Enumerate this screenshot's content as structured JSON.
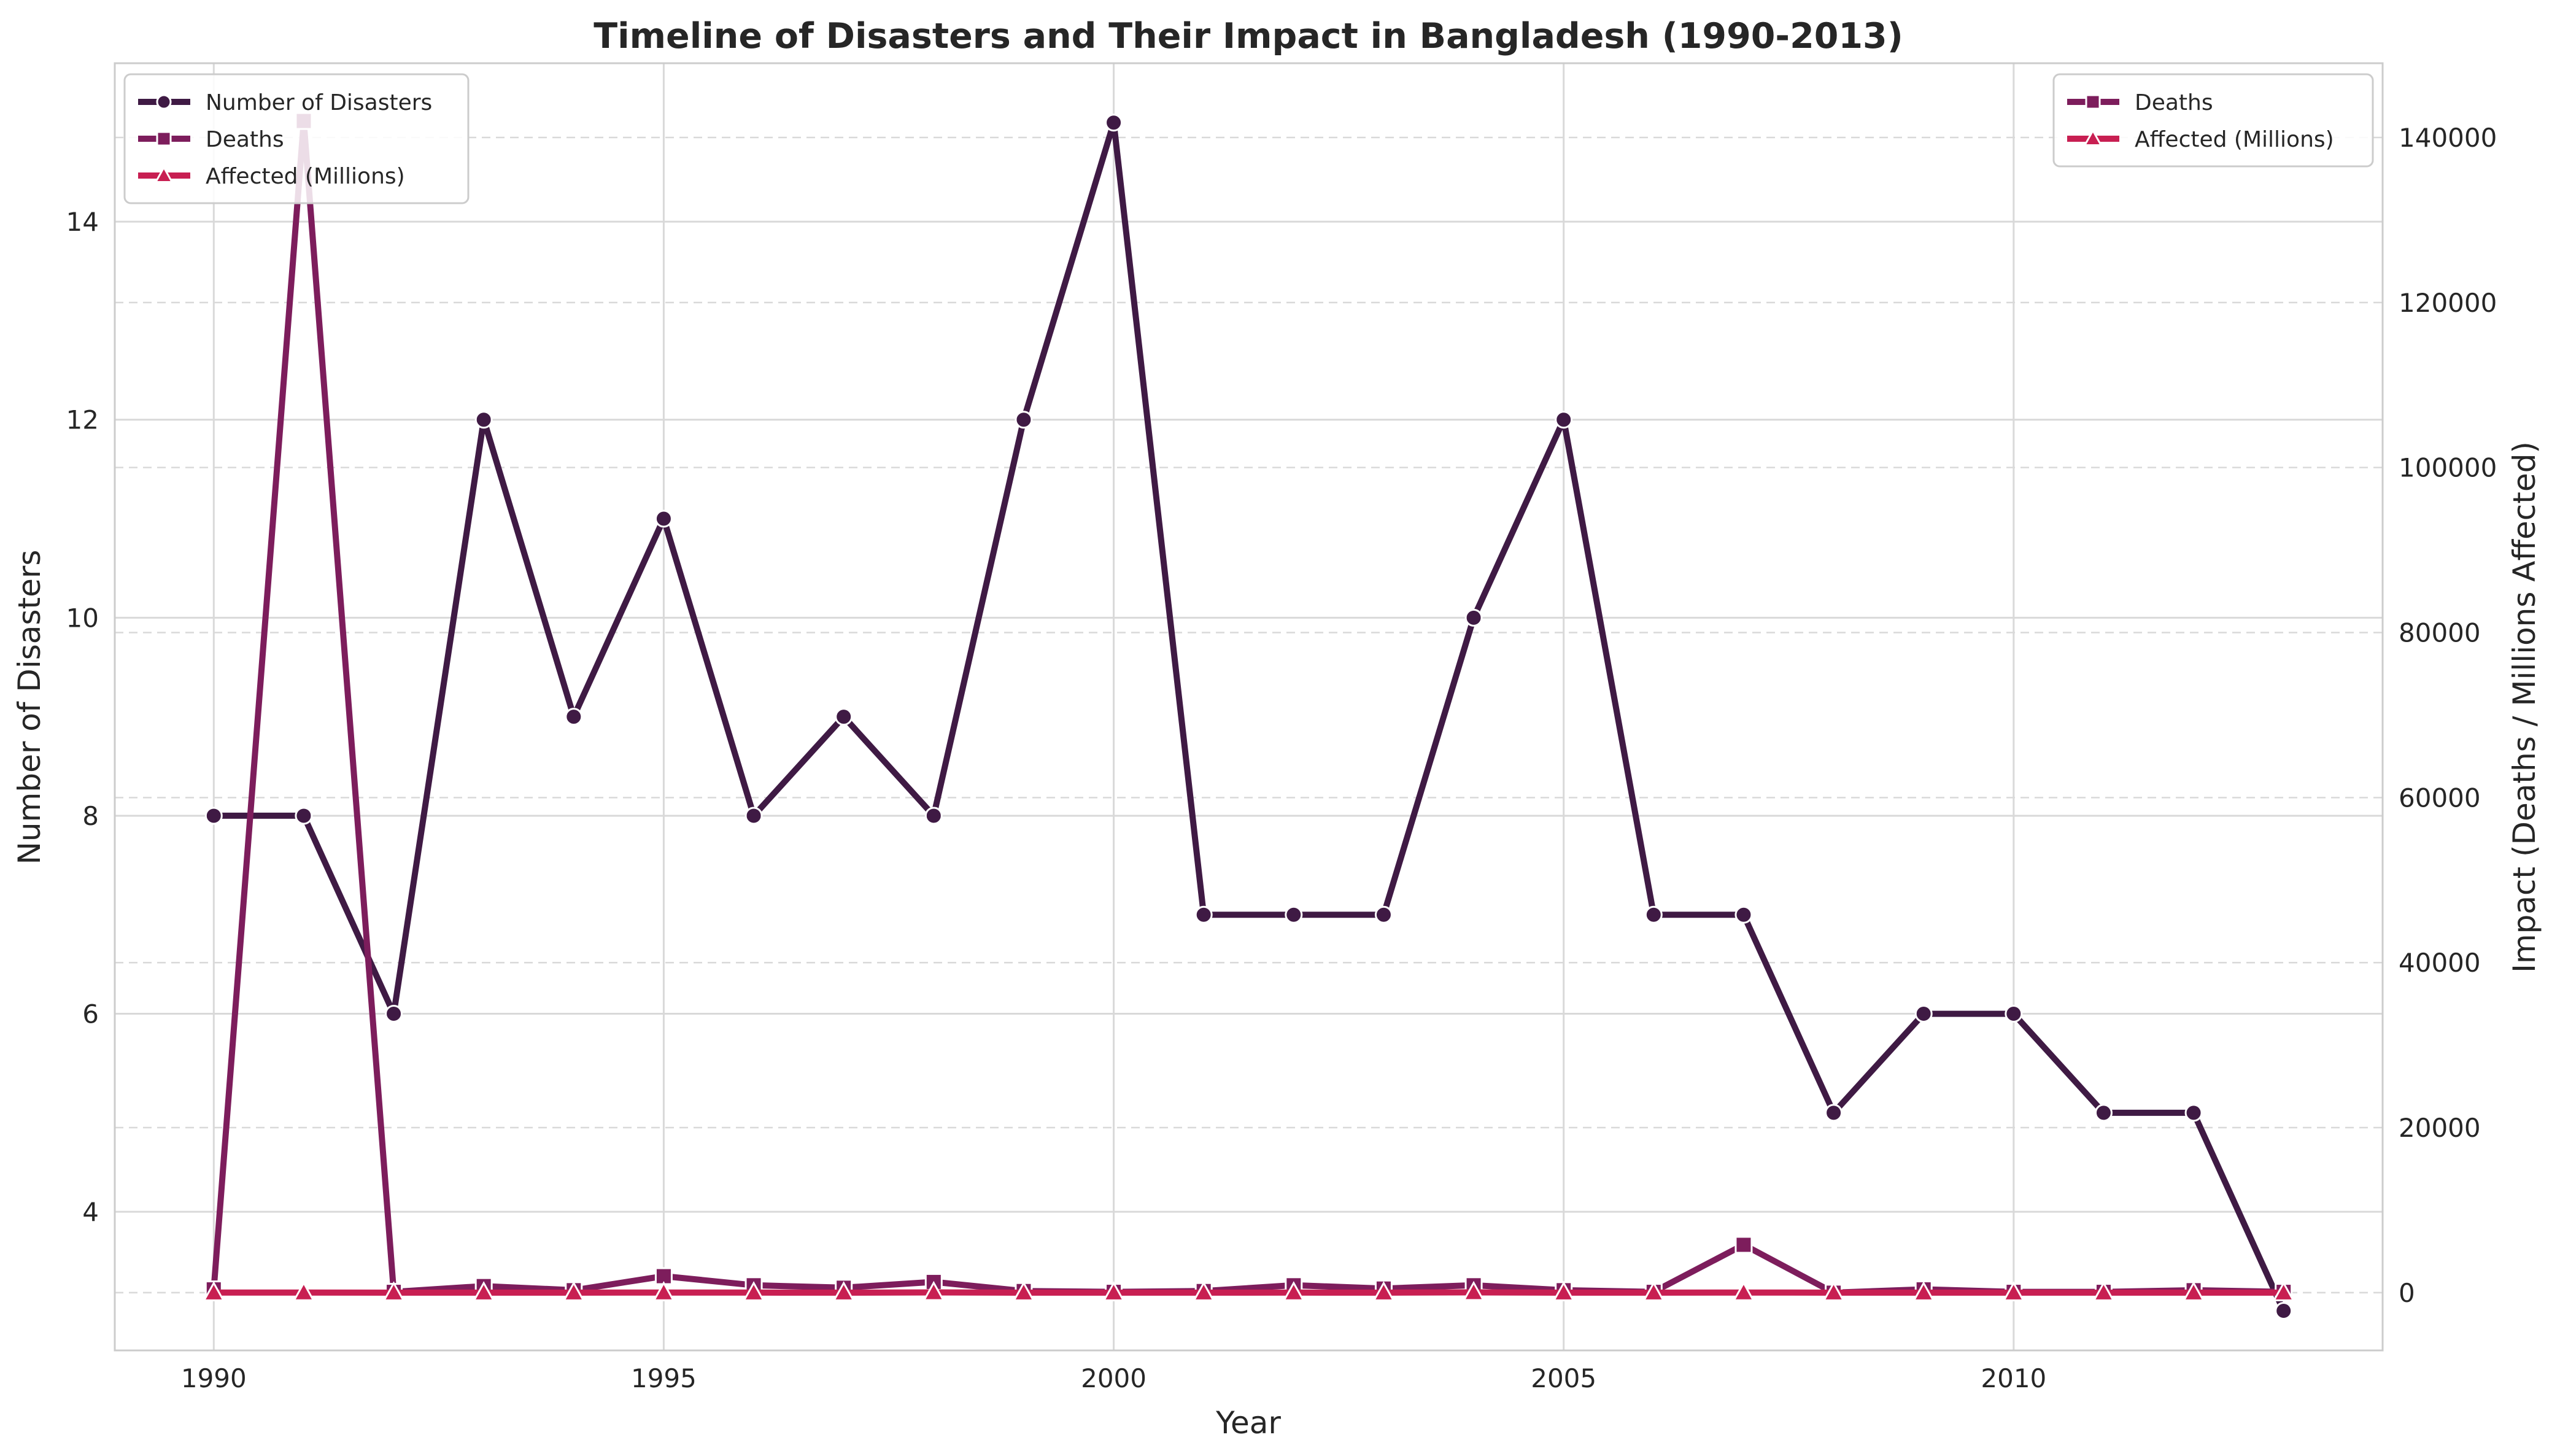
{
  "chart_data": {
    "type": "line",
    "title": "Timeline of Disasters and Their Impact in Bangladesh (1990-2013)",
    "xlabel": "Year",
    "ylabel_left": "Number of Disasters",
    "ylabel_right": "Impact (Deaths / Millions Affected)",
    "xlim": [
      1988.9,
      2014.1
    ],
    "ylim_left": [
      2.6,
      15.6
    ],
    "ylim_right": [
      -7000,
      149000
    ],
    "x_ticks": [
      1990,
      1995,
      2000,
      2005,
      2010
    ],
    "y_left_ticks": [
      4,
      6,
      8,
      10,
      12,
      14
    ],
    "y_right_ticks": [
      0,
      20000,
      40000,
      60000,
      80000,
      100000,
      120000,
      140000
    ],
    "grid": true,
    "x": [
      1990,
      1991,
      1992,
      1993,
      1994,
      1995,
      1996,
      1997,
      1998,
      1999,
      2000,
      2001,
      2002,
      2003,
      2004,
      2005,
      2006,
      2007,
      2008,
      2009,
      2010,
      2011,
      2012,
      2013
    ],
    "series": [
      {
        "name": "Number of Disasters",
        "axis": "left",
        "marker": "circle",
        "color": "#3f1a44",
        "values": [
          8,
          8,
          6,
          12,
          9,
          11,
          8,
          9,
          8,
          12,
          15,
          7,
          7,
          7,
          10,
          12,
          7,
          7,
          5,
          6,
          6,
          5,
          5,
          3
        ]
      },
      {
        "name": "Deaths",
        "axis": "right",
        "marker": "square",
        "color": "#7d1d5c",
        "values": [
          400,
          142000,
          100,
          800,
          300,
          2000,
          900,
          600,
          1300,
          200,
          100,
          200,
          900,
          500,
          900,
          300,
          100,
          5800,
          0,
          400,
          100,
          100,
          300,
          100
        ]
      },
      {
        "name": "Affected (Millions)",
        "axis": "right",
        "marker": "triangle",
        "color": "#c81f52",
        "values": [
          5,
          10,
          2,
          3,
          2,
          12,
          5,
          4,
          30,
          3,
          4,
          3,
          6,
          4,
          36,
          3,
          2,
          13,
          1,
          2,
          1,
          1,
          1,
          1
        ]
      }
    ],
    "legend_left": {
      "position": "upper-left",
      "entries": [
        "Number of Disasters",
        "Deaths",
        "Affected (Millions)"
      ]
    },
    "legend_right": {
      "position": "upper-right",
      "entries": [
        "Deaths",
        "Affected (Millions)"
      ]
    }
  }
}
